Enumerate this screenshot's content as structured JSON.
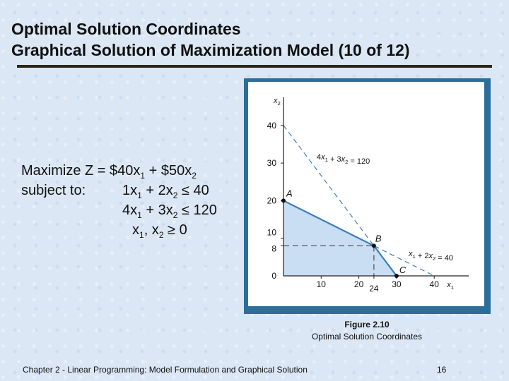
{
  "slide": {
    "title_line1": "Optimal Solution Coordinates",
    "title_line2": "Graphical Solution of Maximization Model (10 of 12)"
  },
  "model": {
    "objective": "Maximize Z = $40x1 + $50x2",
    "subject_to": "subject to:",
    "constraint1": "1x1 + 2x2 ≤ 40",
    "constraint2": "4x1 + 3x2 ≤ 120",
    "nonneg": "x1, x2 ≥ 0"
  },
  "figure": {
    "caption_number": "Figure 2.10",
    "caption_text": "Optimal Solution Coordinates"
  },
  "footer": {
    "text": "Chapter 2 - Linear Programming:  Model Formulation and Graphical Solution",
    "page": "16"
  },
  "colors": {
    "feasible_fill": "#c9def2",
    "constraint_line": "#3a7fc0",
    "frame": "#2c6e9a"
  },
  "chart_data": {
    "type": "line",
    "xlabel": "x1",
    "ylabel": "x2",
    "xlim": [
      0,
      40
    ],
    "ylim": [
      0,
      40
    ],
    "x_ticks": [
      10,
      20,
      24,
      30,
      40
    ],
    "y_ticks": [
      0,
      8,
      10,
      20,
      30,
      40
    ],
    "constraints": [
      {
        "name": "x1 + 2x2 = 40",
        "points": [
          [
            0,
            20
          ],
          [
            40,
            0
          ]
        ]
      },
      {
        "name": "4x1 + 3x2 = 120",
        "points": [
          [
            0,
            40
          ],
          [
            30,
            0
          ]
        ]
      }
    ],
    "feasible_region": [
      [
        0,
        0
      ],
      [
        0,
        20
      ],
      [
        24,
        8
      ],
      [
        30,
        0
      ]
    ],
    "points": [
      {
        "label": "A",
        "x": 0,
        "y": 20
      },
      {
        "label": "B",
        "x": 24,
        "y": 8
      },
      {
        "label": "C",
        "x": 30,
        "y": 0
      }
    ],
    "guides": [
      {
        "x": 24,
        "y": 8
      }
    ]
  }
}
